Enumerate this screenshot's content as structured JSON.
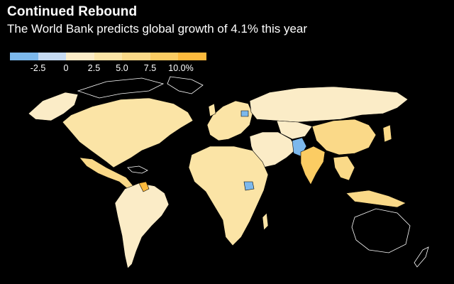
{
  "title": "Continued Rebound",
  "subtitle": "The World Bank predicts global growth of 4.1% this year",
  "legend": {
    "colors": [
      "#7cb8ec",
      "#c6dbf2",
      "#fbecc7",
      "#fbe4a6",
      "#fad988",
      "#fbcc63",
      "#fdba3d"
    ],
    "labels": [
      "-2.5",
      "0",
      "2.5",
      "5.0",
      "7.5",
      "10.0%"
    ]
  },
  "map": {
    "background": "#000000",
    "border_color": "#000000",
    "no_data_outline": "#ffffff",
    "regions": [
      {
        "name": "north-america",
        "color": "#fbe4a6"
      },
      {
        "name": "greenland",
        "color": "#fbecc7"
      },
      {
        "name": "central-america",
        "color": "#fad988"
      },
      {
        "name": "south-america",
        "color": "#fbecc7"
      },
      {
        "name": "guyana",
        "color": "#fdba3d"
      },
      {
        "name": "europe",
        "color": "#fbe4a6"
      },
      {
        "name": "russia",
        "color": "#fbecc7"
      },
      {
        "name": "africa",
        "color": "#fbe4a6"
      },
      {
        "name": "middle-east",
        "color": "#fbecc7"
      },
      {
        "name": "india",
        "color": "#fbcc63"
      },
      {
        "name": "china",
        "color": "#fad988"
      },
      {
        "name": "southeast-asia",
        "color": "#fad988"
      },
      {
        "name": "pakistan",
        "color": "#7cb8ec"
      },
      {
        "name": "belarus",
        "color": "#7cb8ec"
      },
      {
        "name": "south-sudan",
        "color": "#7cb8ec"
      }
    ]
  }
}
